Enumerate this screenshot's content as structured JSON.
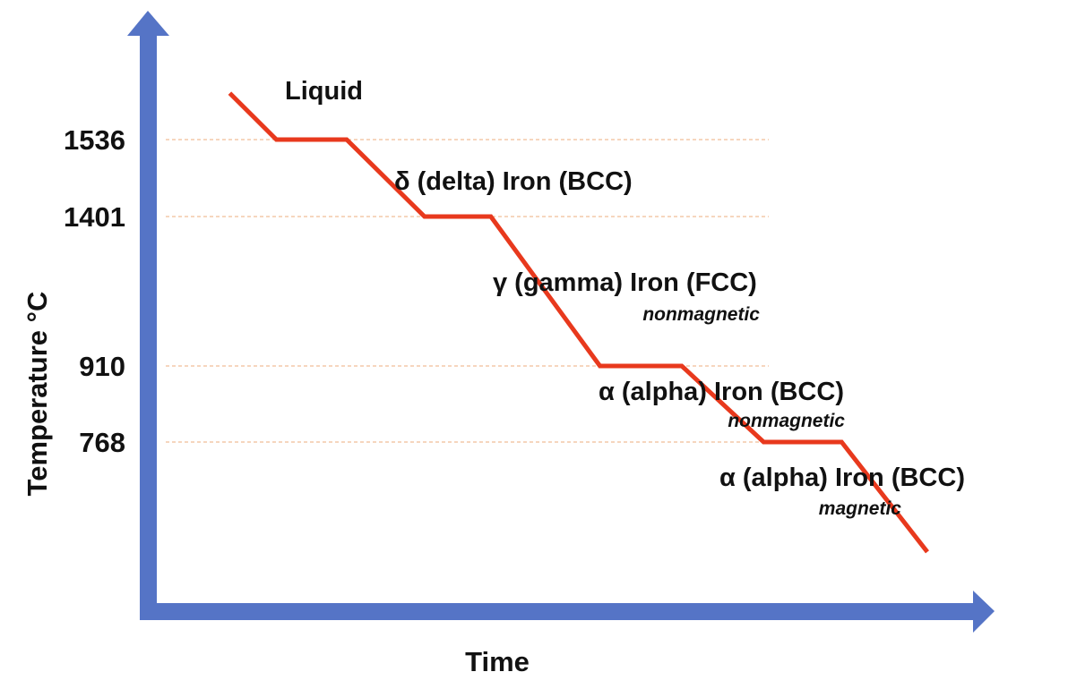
{
  "chart_data": {
    "type": "line",
    "title": "",
    "xlabel": "Time",
    "ylabel": "Temperature °C",
    "grid": false,
    "legend": "none",
    "colors": {
      "axis": "#5574c6",
      "curve": "#e8391d",
      "guide": "#f3c8a8",
      "text": "#111111"
    },
    "y_ticks": [
      1536,
      1401,
      910,
      768
    ],
    "ylim": [
      560,
      1780
    ],
    "xlim": [
      0,
      10
    ],
    "series": [
      {
        "x": [
          1.05,
          1.65,
          2.55,
          3.55,
          4.4,
          5.8,
          6.85,
          7.9,
          8.9,
          10.0
        ],
        "y": [
          1680,
          1536,
          1536,
          1401,
          1401,
          910,
          910,
          768,
          768,
          600
        ]
      }
    ],
    "phases": [
      {
        "label": "Liquid",
        "note": ""
      },
      {
        "label": "δ (delta) Iron (BCC)",
        "note": ""
      },
      {
        "label": "γ (gamma) Iron (FCC)",
        "note": "nonmagnetic"
      },
      {
        "label": "α (alpha) Iron (BCC)",
        "note": "nonmagnetic"
      },
      {
        "label": "α (alpha) Iron (BCC)",
        "note": "magnetic"
      }
    ]
  }
}
